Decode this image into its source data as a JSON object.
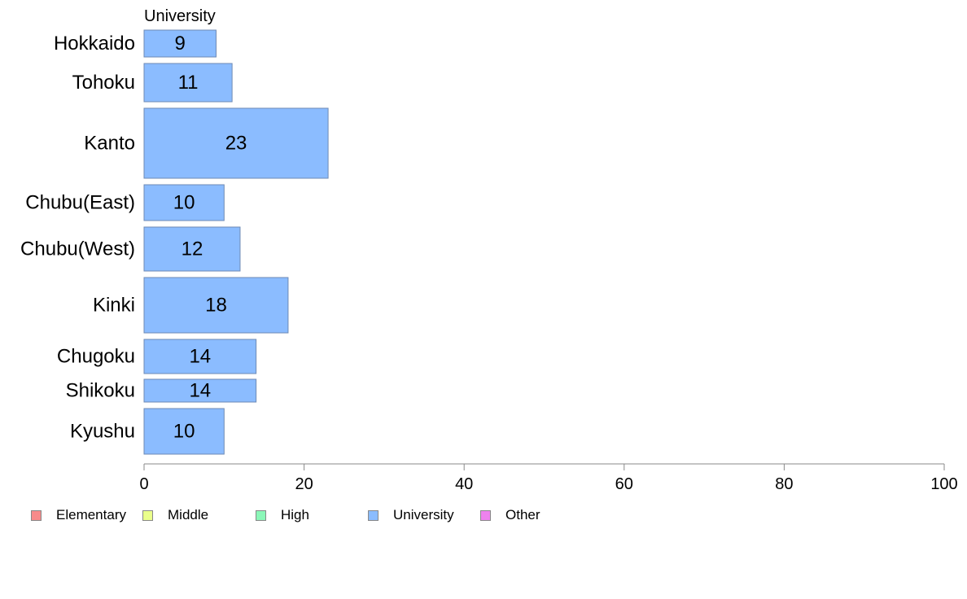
{
  "chart_data": {
    "type": "bar",
    "orientation": "horizontal",
    "title": "University",
    "categories": [
      "Hokkaido",
      "Tohoku",
      "Kanto",
      "Chubu(East)",
      "Chubu(West)",
      "Kinki",
      "Chugoku",
      "Shikoku",
      "Kyushu"
    ],
    "series": [
      {
        "name": "University",
        "values": [
          9,
          11,
          23,
          10,
          12,
          18,
          14,
          14,
          10
        ],
        "color": "#8bbcff"
      }
    ],
    "xlim": [
      0,
      100
    ],
    "xticks": [
      "0",
      "20",
      "40",
      "60",
      "80",
      "100"
    ],
    "grid": false,
    "legend_position": "bottom-left"
  },
  "legend": {
    "items": [
      {
        "label": "Elementary",
        "color": "#f78b8b"
      },
      {
        "label": "Middle",
        "color": "#eaff8b"
      },
      {
        "label": "High",
        "color": "#8bf7b8"
      },
      {
        "label": "University",
        "color": "#8bbcff"
      },
      {
        "label": "Other",
        "color": "#ee82ee"
      }
    ]
  },
  "colors": {
    "bar_border": "#6e8ab4",
    "axis": "#888888"
  }
}
